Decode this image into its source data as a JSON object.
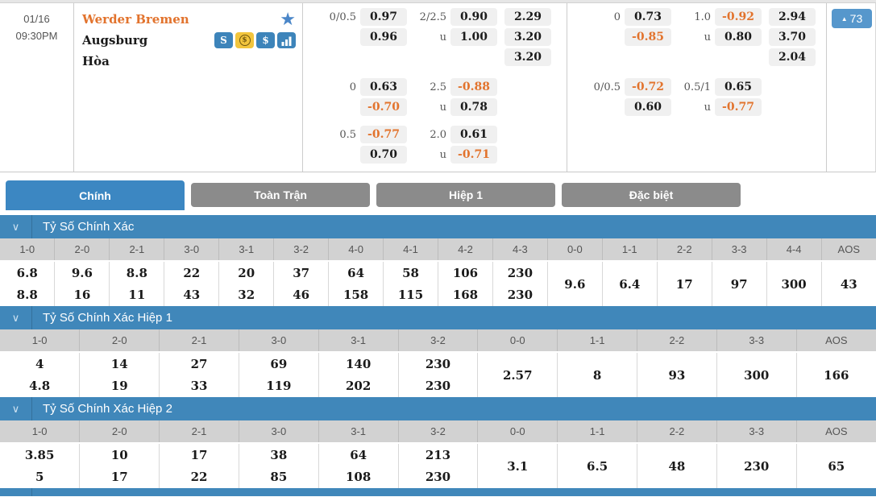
{
  "match": {
    "date": "01/16",
    "time": "09:30PM",
    "home_team": "Werder Bremen",
    "away_team": "Augsburg",
    "draw_label": "Hòa",
    "more_markets_count": "73",
    "icon_names": [
      "favorite-star-icon",
      "bet-slip-icon",
      "currency-exchange-icon",
      "dollar-icon",
      "statistics-icon"
    ]
  },
  "odds": {
    "under_label": "u",
    "ft": {
      "hdp": [
        [
          "0/0.5",
          "0.97",
          "0.96"
        ],
        [
          "0",
          "0.63",
          "-0.70"
        ],
        [
          "0.5",
          "-0.77",
          "0.70"
        ]
      ],
      "ou": [
        [
          "2/2.5",
          "0.90",
          "1.00"
        ],
        [
          "2.5",
          "-0.88",
          "0.78"
        ],
        [
          "2.0",
          "0.61",
          "-0.71"
        ]
      ],
      "x12": [
        "2.29",
        "3.20",
        "3.20"
      ]
    },
    "fh": {
      "hdp": [
        [
          "0",
          "0.73",
          "-0.85"
        ],
        [
          "0/0.5",
          "-0.72",
          "0.60"
        ]
      ],
      "ou": [
        [
          "1.0",
          "-0.92",
          "0.80"
        ],
        [
          "0.5/1",
          "0.65",
          "-0.77"
        ]
      ],
      "x12": [
        "2.94",
        "3.70",
        "2.04"
      ]
    }
  },
  "tabs": [
    {
      "label": "Chính",
      "active": true
    },
    {
      "label": "Toàn Trận",
      "active": false
    },
    {
      "label": "Hiệp 1",
      "active": false
    },
    {
      "label": "Đặc biệt",
      "active": false
    }
  ],
  "score_sections": [
    {
      "title": "Tỷ Số Chính Xác",
      "headers": [
        "1-0",
        "2-0",
        "2-1",
        "3-0",
        "3-1",
        "3-2",
        "4-0",
        "4-1",
        "4-2",
        "4-3",
        "0-0",
        "1-1",
        "2-2",
        "3-3",
        "4-4",
        "AOS"
      ],
      "top": [
        "6.8",
        "9.6",
        "8.8",
        "22",
        "20",
        "37",
        "64",
        "58",
        "106",
        "230"
      ],
      "bottom": [
        "8.8",
        "16",
        "11",
        "43",
        "32",
        "46",
        "158",
        "115",
        "168",
        "230"
      ],
      "singles": [
        "9.6",
        "6.4",
        "17",
        "97",
        "300",
        "43"
      ]
    },
    {
      "title": "Tỷ Số Chính Xác Hiệp 1",
      "headers": [
        "1-0",
        "2-0",
        "2-1",
        "3-0",
        "3-1",
        "3-2",
        "0-0",
        "1-1",
        "2-2",
        "3-3",
        "AOS"
      ],
      "top": [
        "4",
        "14",
        "27",
        "69",
        "140",
        "230"
      ],
      "bottom": [
        "4.8",
        "19",
        "33",
        "119",
        "202",
        "230"
      ],
      "singles": [
        "2.57",
        "8",
        "93",
        "300",
        "166"
      ]
    },
    {
      "title": "Tỷ Số Chính Xác Hiệp 2",
      "headers": [
        "1-0",
        "2-0",
        "2-1",
        "3-0",
        "3-1",
        "3-2",
        "0-0",
        "1-1",
        "2-2",
        "3-3",
        "AOS"
      ],
      "top": [
        "3.85",
        "10",
        "17",
        "38",
        "64",
        "213"
      ],
      "bottom": [
        "5",
        "17",
        "22",
        "85",
        "108",
        "230"
      ],
      "singles": [
        "3.1",
        "6.5",
        "48",
        "230",
        "65"
      ]
    }
  ],
  "colors": {
    "accent_blue": "#4087ba",
    "active_tab_blue": "#3c87c2",
    "badge_blue": "#5697cc",
    "tab_gray": "#8b8b8b",
    "negative_odds_orange": "#e2732d",
    "home_team_orange": "#e2732d",
    "header_row_gray": "#d2d2d2"
  }
}
